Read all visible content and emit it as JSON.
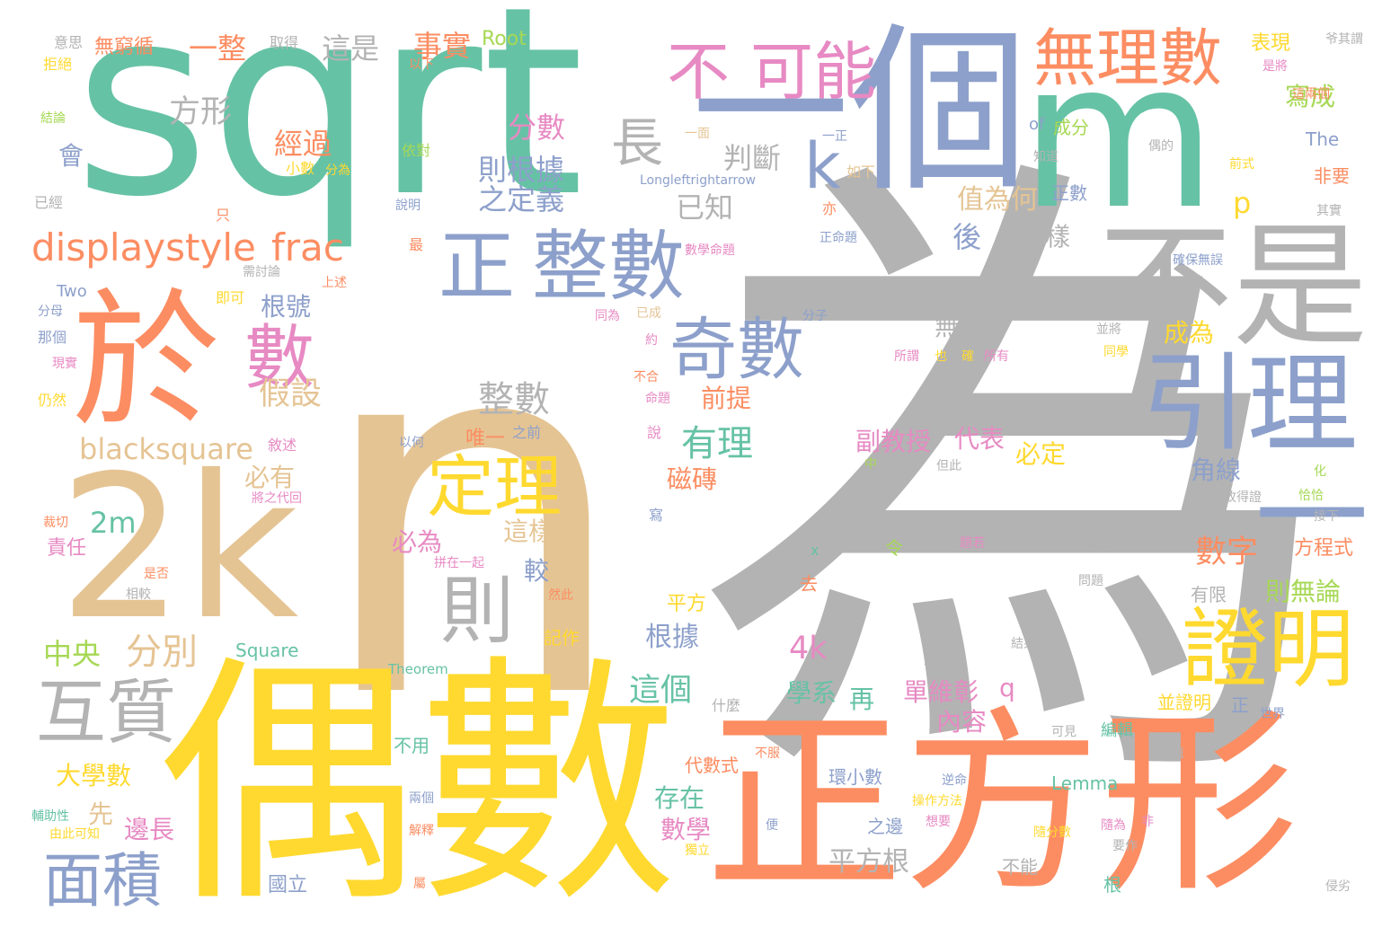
{
  "words": [
    {
      "t": "n",
      "c": 6
    },
    {
      "t": "為",
      "c": 7
    },
    {
      "t": "偶數",
      "c": 5
    },
    {
      "t": "正方形",
      "c": 1
    },
    {
      "t": "sqrt",
      "c": 0
    },
    {
      "t": "m",
      "c": 0
    },
    {
      "t": "個",
      "c": 2
    },
    {
      "t": "2k",
      "c": 6
    },
    {
      "t": "於",
      "c": 1
    },
    {
      "t": "無理數",
      "c": 1
    },
    {
      "t": "不是",
      "c": 7
    },
    {
      "t": "引理",
      "c": 2
    },
    {
      "t": "證明",
      "c": 5
    },
    {
      "t": "正",
      "c": 2
    },
    {
      "t": "整數",
      "c": 2
    },
    {
      "t": "定理",
      "c": 5
    },
    {
      "t": "則",
      "c": 7
    },
    {
      "t": "數",
      "c": 3
    },
    {
      "t": "奇數",
      "c": 2
    },
    {
      "t": "不",
      "c": 3
    },
    {
      "t": "可能",
      "c": 3
    },
    {
      "t": "互質",
      "c": 7
    },
    {
      "t": "面積",
      "c": 2
    },
    {
      "t": "displaystyle",
      "c": 1
    },
    {
      "t": "frac",
      "c": 1
    },
    {
      "t": "長",
      "c": 7
    },
    {
      "t": "k",
      "c": 2
    },
    {
      "t": "一",
      "c": 2
    },
    {
      "t": "二",
      "c": 2
    },
    {
      "t": "整數",
      "c": 7
    },
    {
      "t": "blacksquare",
      "c": 6
    },
    {
      "t": "有理",
      "c": 0
    },
    {
      "t": "假設",
      "c": 6
    },
    {
      "t": "分別",
      "c": 6
    },
    {
      "t": "中央",
      "c": 4
    },
    {
      "t": "2m",
      "c": 0
    },
    {
      "t": "方形",
      "c": 7
    },
    {
      "t": "一整",
      "c": 1
    },
    {
      "t": "這是",
      "c": 7
    },
    {
      "t": "事實",
      "c": 1
    },
    {
      "t": "Root",
      "c": 4
    },
    {
      "t": "無窮循",
      "c": 1
    },
    {
      "t": "取得",
      "c": 7
    },
    {
      "t": "意思",
      "c": 7
    },
    {
      "t": "拒絕",
      "c": 5
    },
    {
      "t": "表現",
      "c": 5
    },
    {
      "t": "爷其謂",
      "c": 7
    },
    {
      "t": "寫成",
      "c": 4
    },
    {
      "t": "分數",
      "c": 3
    },
    {
      "t": "經過",
      "c": 1
    },
    {
      "t": "判斷",
      "c": 7
    },
    {
      "t": "則根據",
      "c": 2
    },
    {
      "t": "之定義",
      "c": 2
    },
    {
      "t": "已知",
      "c": 7
    },
    {
      "t": "值為何",
      "c": 6
    },
    {
      "t": "正數",
      "c": 2
    },
    {
      "t": "p",
      "c": 5
    },
    {
      "t": "後",
      "c": 2
    },
    {
      "t": "同樣",
      "c": 7
    },
    {
      "t": "成分",
      "c": 4
    },
    {
      "t": "The",
      "c": 2
    },
    {
      "t": "非要",
      "c": 1
    },
    {
      "t": "根號",
      "c": 2
    },
    {
      "t": "無法",
      "c": 7
    },
    {
      "t": "成為",
      "c": 5
    },
    {
      "t": "前提",
      "c": 1
    },
    {
      "t": "副教授",
      "c": 3
    },
    {
      "t": "代表",
      "c": 3
    },
    {
      "t": "必定",
      "c": 5
    },
    {
      "t": "唯一",
      "c": 1
    },
    {
      "t": "角線",
      "c": 2
    },
    {
      "t": "數字",
      "c": 1
    },
    {
      "t": "方程式",
      "c": 1
    },
    {
      "t": "則無論",
      "c": 4
    },
    {
      "t": "有限",
      "c": 7
    },
    {
      "t": "磁磚",
      "c": 1
    },
    {
      "t": "必有",
      "c": 6
    },
    {
      "t": "必為",
      "c": 3
    },
    {
      "t": "這樣",
      "c": 6
    },
    {
      "t": "較",
      "c": 2
    },
    {
      "t": "責任",
      "c": 3
    },
    {
      "t": "平方",
      "c": 5
    },
    {
      "t": "根據",
      "c": 2
    },
    {
      "t": "4k",
      "c": 3
    },
    {
      "t": "這個",
      "c": 0
    },
    {
      "t": "學系",
      "c": 0
    },
    {
      "t": "再",
      "c": 0
    },
    {
      "t": "單維彰",
      "c": 3
    },
    {
      "t": "內容",
      "c": 3
    },
    {
      "t": "q",
      "c": 3
    },
    {
      "t": "大學數",
      "c": 5
    },
    {
      "t": "先",
      "c": 6
    },
    {
      "t": "邊長",
      "c": 3
    },
    {
      "t": "存在",
      "c": 0
    },
    {
      "t": "數學",
      "c": 3
    },
    {
      "t": "平方根",
      "c": 7
    },
    {
      "t": "國立",
      "c": 2
    },
    {
      "t": "Square",
      "c": 0
    },
    {
      "t": "Lemma",
      "c": 0
    },
    {
      "t": "Theorem",
      "c": 0
    },
    {
      "t": "記作",
      "c": 5
    },
    {
      "t": "會",
      "c": 2
    },
    {
      "t": "已經",
      "c": 7
    },
    {
      "t": "Two",
      "c": 2
    },
    {
      "t": "小數",
      "c": 5
    },
    {
      "t": "分為",
      "c": 5
    },
    {
      "t": "依對",
      "c": 4
    },
    {
      "t": "Longleftrightarrow",
      "c": 2
    },
    {
      "t": "數學命題",
      "c": 3
    },
    {
      "t": "正命題",
      "c": 2
    },
    {
      "t": "確保無誤",
      "c": 2
    },
    {
      "t": "所謂",
      "c": 3
    },
    {
      "t": "所有",
      "c": 3
    },
    {
      "t": "也",
      "c": 5
    },
    {
      "t": "確",
      "c": 5
    },
    {
      "t": "結論",
      "c": 4
    },
    {
      "t": "以下",
      "c": 1
    },
    {
      "t": "of",
      "c": 2
    },
    {
      "t": "如下",
      "c": 6
    },
    {
      "t": "知道",
      "c": 7
    },
    {
      "t": "偶的",
      "c": 7
    },
    {
      "t": "前式",
      "c": 5
    },
    {
      "t": "其實",
      "c": 7
    },
    {
      "t": "是將",
      "c": 3
    },
    {
      "t": "這兩個",
      "c": 1
    },
    {
      "t": "一正",
      "c": 2
    },
    {
      "t": "一面",
      "c": 6
    },
    {
      "t": "說明",
      "c": 2
    },
    {
      "t": "只",
      "c": 1
    },
    {
      "t": "亦",
      "c": 1
    },
    {
      "t": "最",
      "c": 1
    },
    {
      "t": "需討論",
      "c": 7
    },
    {
      "t": "即可",
      "c": 5
    },
    {
      "t": "上述",
      "c": 1
    },
    {
      "t": "分母",
      "c": 2
    },
    {
      "t": "那個",
      "c": 2
    },
    {
      "t": "現實",
      "c": 3
    },
    {
      "t": "仍然",
      "c": 5
    },
    {
      "t": "分子",
      "c": 2
    },
    {
      "t": "同為",
      "c": 3
    },
    {
      "t": "已成",
      "c": 6
    },
    {
      "t": "約",
      "c": 3
    },
    {
      "t": "不合",
      "c": 1
    },
    {
      "t": "命題",
      "c": 3
    },
    {
      "t": "說",
      "c": 3
    },
    {
      "t": "以何",
      "c": 2
    },
    {
      "t": "之前",
      "c": 2
    },
    {
      "t": "敘述",
      "c": 3
    },
    {
      "t": "將之代回",
      "c": 3
    },
    {
      "t": "裁切",
      "c": 1
    },
    {
      "t": "是否",
      "c": 1
    },
    {
      "t": "相較",
      "c": 7
    },
    {
      "t": "寫",
      "c": 2
    },
    {
      "t": "讀作",
      "c": 7
    },
    {
      "t": "令",
      "c": 4
    },
    {
      "t": "去",
      "c": 1
    },
    {
      "t": "x",
      "c": 0
    },
    {
      "t": "題若",
      "c": 3
    },
    {
      "t": "兩項",
      "c": 7
    },
    {
      "t": "問題",
      "c": 7
    },
    {
      "t": "並將",
      "c": 7
    },
    {
      "t": "同學",
      "c": 5
    },
    {
      "t": "化",
      "c": 4
    },
    {
      "t": "恰恰",
      "c": 4
    },
    {
      "t": "接下",
      "c": 7
    },
    {
      "t": "故得證",
      "c": 7
    },
    {
      "t": "拼在一起",
      "c": 3
    },
    {
      "t": "然此",
      "c": 1
    },
    {
      "t": "結果",
      "c": 7
    },
    {
      "t": "不符",
      "c": 7
    },
    {
      "t": "什麼",
      "c": 7
    },
    {
      "t": "並證明",
      "c": 5
    },
    {
      "t": "世界",
      "c": 2
    },
    {
      "t": "可見",
      "c": 7
    },
    {
      "t": "編輯",
      "c": 0
    },
    {
      "t": "價值",
      "c": 7
    },
    {
      "t": "不用",
      "c": 0
    },
    {
      "t": "代數式",
      "c": 1
    },
    {
      "t": "不服",
      "c": 1
    },
    {
      "t": "環小數",
      "c": 2
    },
    {
      "t": "逆命",
      "c": 2
    },
    {
      "t": "操作方法",
      "c": 5
    },
    {
      "t": "想要",
      "c": 3
    },
    {
      "t": "之邊",
      "c": 2
    },
    {
      "t": "兩個",
      "c": 2
    },
    {
      "t": "輔助性",
      "c": 0
    },
    {
      "t": "由此可知",
      "c": 5
    },
    {
      "t": "便",
      "c": 2
    },
    {
      "t": "解釋",
      "c": 1
    },
    {
      "t": "屬",
      "c": 1
    },
    {
      "t": "獨立",
      "c": 5
    },
    {
      "t": "不能",
      "c": 7
    },
    {
      "t": "隨分數",
      "c": 5
    },
    {
      "t": "根",
      "c": 0
    },
    {
      "t": "要作",
      "c": 7
    },
    {
      "t": "隨為",
      "c": 3
    },
    {
      "t": "非",
      "c": 3
    },
    {
      "t": "侵劣",
      "c": 7
    },
    {
      "t": "正",
      "c": 2
    },
    {
      "t": "但此",
      "c": 7
    },
    {
      "t": "中",
      "c": 4
    }
  ]
}
